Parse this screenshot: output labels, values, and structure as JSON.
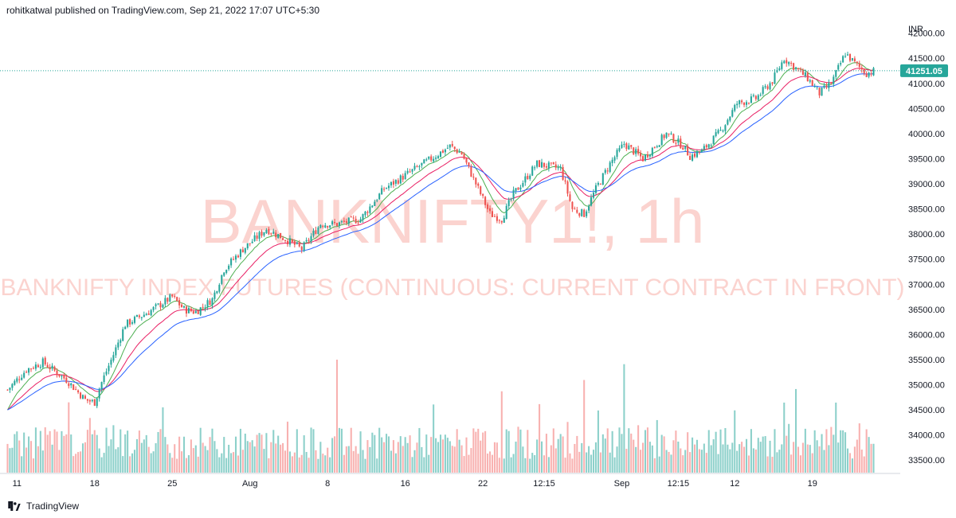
{
  "header": {
    "publisher_line": "rohitkatwal published on TradingView.com, Sep 21, 2022 17:07 UTC+5:30"
  },
  "footer": {
    "brand": "TradingView"
  },
  "colors": {
    "up": "#26a69a",
    "down": "#ef5350",
    "ema_fast": "#4caf50",
    "ema_mid": "#e91e63",
    "ema_slow": "#2962ff",
    "watermark": "#fbd3cf",
    "price_tag": "#26a69a"
  },
  "chart_data": {
    "type": "candlestick",
    "symbol_watermark": "BANKNIFTY1!, 1h",
    "description_watermark": "BANKNIFTY INDEX FUTURES (CONTINUOUS: CURRENT CONTRACT IN FRONT)",
    "currency": "INR",
    "last_price": "41251.05",
    "last_price_value": 41251.05,
    "ylim": [
      33250,
      42200
    ],
    "y_ticks": [
      "42000.00",
      "41500.00",
      "41000.00",
      "40500.00",
      "40000.00",
      "39500.00",
      "39000.00",
      "38500.00",
      "38000.00",
      "37500.00",
      "37000.00",
      "36500.00",
      "36000.00",
      "35500.00",
      "35000.00",
      "34500.00",
      "34000.00",
      "33500.00"
    ],
    "y_tick_values": [
      42000,
      41500,
      41000,
      40500,
      40000,
      39500,
      39000,
      38500,
      38000,
      37500,
      37000,
      36500,
      36000,
      35500,
      35000,
      34500,
      34000,
      33500
    ],
    "x_ticks": [
      {
        "label": "11",
        "bar": 4
      },
      {
        "label": "18",
        "bar": 37
      },
      {
        "label": "25",
        "bar": 70
      },
      {
        "label": "Aug",
        "bar": 103
      },
      {
        "label": "8",
        "bar": 136
      },
      {
        "label": "16",
        "bar": 169
      },
      {
        "label": "22",
        "bar": 202
      },
      {
        "label": "12:15",
        "bar": 228
      },
      {
        "label": "Sep",
        "bar": 261
      },
      {
        "label": "12:15",
        "bar": 285
      },
      {
        "label": "12",
        "bar": 309
      },
      {
        "label": "19",
        "bar": 342
      }
    ],
    "bars": 369,
    "price_path": [
      [
        0,
        34900
      ],
      [
        8,
        35300
      ],
      [
        15,
        35450
      ],
      [
        25,
        35100
      ],
      [
        33,
        34700
      ],
      [
        37,
        34650
      ],
      [
        40,
        35050
      ],
      [
        45,
        35600
      ],
      [
        50,
        36200
      ],
      [
        60,
        36450
      ],
      [
        65,
        36600
      ],
      [
        70,
        36750
      ],
      [
        75,
        36500
      ],
      [
        80,
        36450
      ],
      [
        87,
        36700
      ],
      [
        92,
        37300
      ],
      [
        100,
        37700
      ],
      [
        110,
        38100
      ],
      [
        118,
        37900
      ],
      [
        125,
        37700
      ],
      [
        133,
        38200
      ],
      [
        140,
        38200
      ],
      [
        150,
        38300
      ],
      [
        160,
        38900
      ],
      [
        170,
        39200
      ],
      [
        180,
        39500
      ],
      [
        188,
        39750
      ],
      [
        193,
        39600
      ],
      [
        200,
        38900
      ],
      [
        205,
        38400
      ],
      [
        210,
        38300
      ],
      [
        215,
        38800
      ],
      [
        225,
        39400
      ],
      [
        235,
        39300
      ],
      [
        240,
        38500
      ],
      [
        245,
        38400
      ],
      [
        250,
        38900
      ],
      [
        256,
        39400
      ],
      [
        262,
        39800
      ],
      [
        270,
        39500
      ],
      [
        280,
        40000
      ],
      [
        287,
        39750
      ],
      [
        290,
        39550
      ],
      [
        295,
        39650
      ],
      [
        303,
        40050
      ],
      [
        310,
        40600
      ],
      [
        318,
        40700
      ],
      [
        325,
        41050
      ],
      [
        330,
        41500
      ],
      [
        335,
        41300
      ],
      [
        340,
        41100
      ],
      [
        345,
        40800
      ],
      [
        350,
        41000
      ],
      [
        356,
        41600
      ],
      [
        360,
        41400
      ],
      [
        365,
        41200
      ],
      [
        369,
        41251
      ]
    ],
    "volume_spikes": [
      {
        "bar": 45,
        "value": 0.42
      },
      {
        "bar": 140,
        "value": 1.0
      },
      {
        "bar": 210,
        "value": 0.72
      },
      {
        "bar": 245,
        "value": 0.82
      },
      {
        "bar": 262,
        "value": 0.96
      },
      {
        "bar": 335,
        "value": 0.74
      },
      {
        "bar": 330,
        "value": 0.62
      },
      {
        "bar": 352,
        "value": 0.62
      }
    ]
  }
}
